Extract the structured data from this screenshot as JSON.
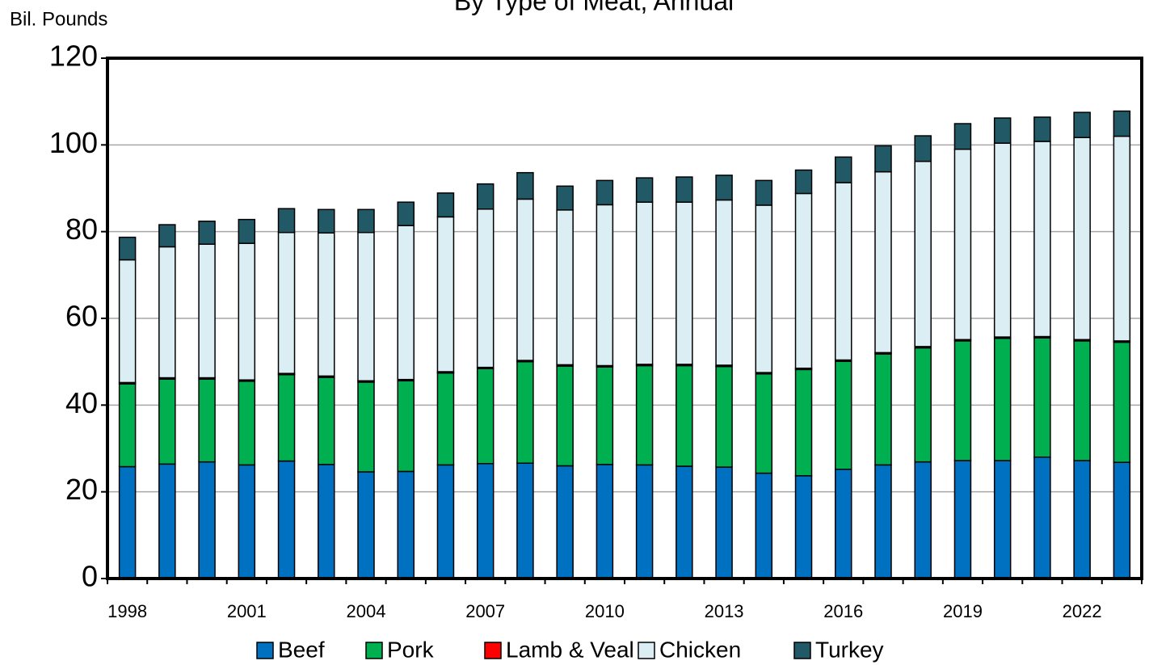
{
  "chart_data": {
    "type": "stacked-bar",
    "title": "By Type of Meat, Annual",
    "y_label": "Bil. Pounds",
    "categories": [
      "1998",
      null,
      null,
      "2001",
      null,
      null,
      "2004",
      null,
      null,
      "2007",
      null,
      null,
      "2010",
      null,
      null,
      "2013",
      null,
      null,
      "2016",
      null,
      null,
      "2019",
      null,
      null,
      "2022",
      null
    ],
    "series": [
      {
        "name": "Beef",
        "color": "#0070c0",
        "values": [
          25.8,
          26.4,
          26.9,
          26.2,
          27.1,
          26.3,
          24.6,
          24.7,
          26.2,
          26.5,
          26.6,
          26.0,
          26.3,
          26.2,
          25.9,
          25.7,
          24.3,
          23.7,
          25.2,
          26.2,
          26.9,
          27.2,
          27.2,
          28.0,
          27.2,
          26.8
        ]
      },
      {
        "name": "Pork",
        "color": "#00b050",
        "values": [
          19.1,
          19.6,
          19.1,
          19.3,
          19.9,
          20.1,
          20.7,
          20.9,
          21.2,
          21.9,
          23.4,
          23.0,
          22.5,
          22.9,
          23.2,
          23.2,
          22.9,
          24.5,
          24.9,
          25.6,
          26.3,
          27.6,
          28.2,
          27.5,
          27.6,
          27.7
        ]
      },
      {
        "name": "Lamb & Veal",
        "color": "#ff0000",
        "values": [
          0.3,
          0.3,
          0.3,
          0.3,
          0.3,
          0.3,
          0.3,
          0.3,
          0.3,
          0.3,
          0.3,
          0.3,
          0.3,
          0.3,
          0.3,
          0.3,
          0.3,
          0.3,
          0.3,
          0.3,
          0.3,
          0.3,
          0.3,
          0.3,
          0.3,
          0.3
        ]
      },
      {
        "name": "Chicken",
        "color": "#daeef3",
        "values": [
          28.3,
          30.2,
          30.8,
          31.5,
          32.5,
          33.0,
          34.2,
          35.5,
          35.7,
          36.5,
          37.2,
          35.7,
          37.1,
          37.4,
          37.4,
          38.1,
          38.6,
          40.3,
          40.9,
          41.7,
          42.7,
          43.9,
          44.7,
          45.0,
          46.6,
          47.2
        ]
      },
      {
        "name": "Turkey",
        "color": "#215967",
        "values": [
          5.2,
          5.1,
          5.3,
          5.5,
          5.5,
          5.4,
          5.3,
          5.4,
          5.5,
          5.8,
          6.1,
          5.5,
          5.6,
          5.6,
          5.8,
          5.7,
          5.7,
          5.4,
          5.9,
          6.0,
          5.9,
          5.9,
          5.8,
          5.6,
          5.8,
          5.8
        ]
      }
    ],
    "ylim": [
      0,
      120
    ],
    "yticks": [
      0,
      20,
      40,
      60,
      80,
      100,
      120
    ],
    "grid": true
  }
}
